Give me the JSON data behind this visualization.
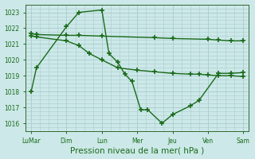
{
  "x_labels": [
    "LuMar",
    "Dim",
    "Lun",
    "Mer",
    "Jeu",
    "Ven",
    "Sam"
  ],
  "line1_jagged": {
    "x": [
      0.0,
      0.15,
      1.0,
      1.35,
      2.0,
      2.2,
      2.45,
      2.65,
      2.85,
      3.1,
      3.3,
      3.7,
      4.0,
      4.5,
      4.75,
      5.3,
      5.65,
      6.0
    ],
    "y": [
      1018.0,
      1019.5,
      1022.1,
      1023.0,
      1023.15,
      1020.4,
      1019.85,
      1019.1,
      1018.65,
      1016.85,
      1016.85,
      1016.0,
      1016.55,
      1017.1,
      1017.45,
      1019.15,
      1019.15,
      1019.2
    ],
    "color": "#1a6b1a",
    "linewidth": 1.0,
    "marker": "+",
    "markersize": 4,
    "markeredgewidth": 1.2
  },
  "line2_flat": {
    "x": [
      0.0,
      0.15,
      1.0,
      1.35,
      2.0,
      3.5,
      4.0,
      5.0,
      5.3,
      5.65,
      6.0
    ],
    "y": [
      1021.65,
      1021.6,
      1021.55,
      1021.55,
      1021.5,
      1021.4,
      1021.35,
      1021.3,
      1021.25,
      1021.2,
      1021.2
    ],
    "color": "#1a6b1a",
    "linewidth": 1.0,
    "marker": "+",
    "markersize": 4,
    "markeredgewidth": 1.2
  },
  "line3_decline": {
    "x": [
      0.0,
      0.15,
      1.0,
      1.35,
      1.65,
      2.0,
      2.45,
      3.0,
      3.5,
      4.0,
      4.5,
      4.75,
      5.0,
      5.3,
      5.65,
      6.0
    ],
    "y": [
      1021.5,
      1021.45,
      1021.2,
      1020.9,
      1020.4,
      1020.0,
      1019.5,
      1019.35,
      1019.25,
      1019.15,
      1019.1,
      1019.1,
      1019.05,
      1019.0,
      1019.0,
      1018.95
    ],
    "color": "#1a6b1a",
    "linewidth": 1.0,
    "marker": "+",
    "markersize": 4,
    "markeredgewidth": 1.2
  },
  "ylim": [
    1015.5,
    1023.5
  ],
  "yticks": [
    1016,
    1017,
    1018,
    1019,
    1020,
    1021,
    1022,
    1023
  ],
  "xlabel": "Pression niveau de la mer( hPa )",
  "bg_color": "#cce8e8",
  "grid_color": "#aacccc",
  "text_color": "#1a6b1a",
  "spine_color": "#336633",
  "tick_fontsize": 5.5,
  "xlabel_fontsize": 7.5
}
